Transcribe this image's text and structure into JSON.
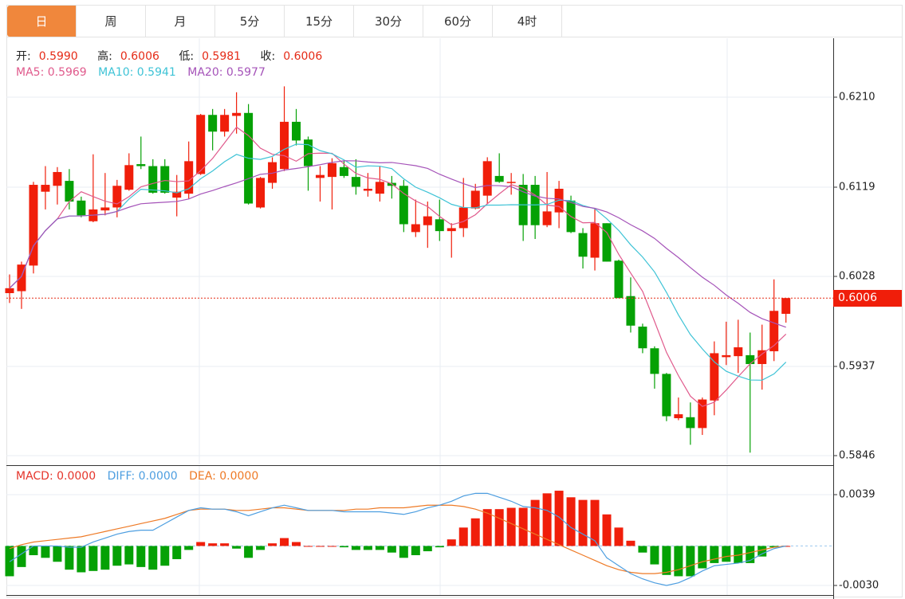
{
  "tabs": [
    {
      "label": "日",
      "active": true
    },
    {
      "label": "周",
      "active": false
    },
    {
      "label": "月",
      "active": false
    },
    {
      "label": "5分",
      "active": false
    },
    {
      "label": "15分",
      "active": false
    },
    {
      "label": "30分",
      "active": false
    },
    {
      "label": "60分",
      "active": false
    },
    {
      "label": "4时",
      "active": false
    }
  ],
  "ohlc_legend": {
    "open_label": "开:",
    "open": "0.5990",
    "high_label": "高:",
    "high": "0.6006",
    "low_label": "低:",
    "low": "0.5981",
    "close_label": "收:",
    "close": "0.6006"
  },
  "ma_legend": {
    "ma5": "MA5: 0.5969",
    "ma10": "MA10: 0.5941",
    "ma20": "MA20: 0.5977"
  },
  "macd_legend": {
    "macd": "MACD: 0.0000",
    "diff": "DIFF: 0.0000",
    "dea": "DEA: 0.0000"
  },
  "current_price": "0.6006",
  "colors": {
    "up": "#f01e0a",
    "down": "#05a105",
    "ma5": "#e05a8c",
    "ma10": "#3ec3d6",
    "ma20": "#a553b9",
    "diff": "#4d9ee0",
    "dea": "#ee7a26",
    "tab_active": "#f0873c"
  },
  "chart_data": [
    {
      "type": "candlestick",
      "y_ticks": [
        "0.6210",
        "0.6119",
        "0.6028",
        "0.5937",
        "0.5846"
      ],
      "ylim": [
        0.5846,
        0.621
      ],
      "grid": true,
      "ma_periods": [
        5,
        10,
        20
      ],
      "ohlc": [
        [
          0.6011,
          0.603,
          0.6001,
          0.6016
        ],
        [
          0.6013,
          0.6043,
          0.5995,
          0.604
        ],
        [
          0.6039,
          0.6124,
          0.6031,
          0.6121
        ],
        [
          0.6114,
          0.614,
          0.6096,
          0.6121
        ],
        [
          0.612,
          0.6139,
          0.6101,
          0.6134
        ],
        [
          0.6125,
          0.6137,
          0.6096,
          0.6104
        ],
        [
          0.6105,
          0.6109,
          0.6088,
          0.609
        ],
        [
          0.6084,
          0.6152,
          0.6083,
          0.6096
        ],
        [
          0.6095,
          0.6133,
          0.609,
          0.6098
        ],
        [
          0.6098,
          0.6126,
          0.6088,
          0.612
        ],
        [
          0.6116,
          0.6153,
          0.6115,
          0.6141
        ],
        [
          0.6142,
          0.617,
          0.6137,
          0.614
        ],
        [
          0.614,
          0.6147,
          0.6112,
          0.6113
        ],
        [
          0.614,
          0.6147,
          0.6112,
          0.6113
        ],
        [
          0.6108,
          0.6131,
          0.6089,
          0.6114
        ],
        [
          0.6112,
          0.6165,
          0.6107,
          0.6145
        ],
        [
          0.6132,
          0.6193,
          0.6131,
          0.6192
        ],
        [
          0.6192,
          0.6198,
          0.6156,
          0.6175
        ],
        [
          0.6175,
          0.6198,
          0.617,
          0.6192
        ],
        [
          0.6191,
          0.6215,
          0.6173,
          0.6194
        ],
        [
          0.6194,
          0.6203,
          0.6101,
          0.6102
        ],
        [
          0.6098,
          0.6129,
          0.6097,
          0.6128
        ],
        [
          0.6123,
          0.6149,
          0.6117,
          0.6144
        ],
        [
          0.6137,
          0.6221,
          0.6135,
          0.6185
        ],
        [
          0.6185,
          0.6198,
          0.6161,
          0.6166
        ],
        [
          0.6167,
          0.617,
          0.6115,
          0.614
        ],
        [
          0.6128,
          0.614,
          0.6104,
          0.6131
        ],
        [
          0.6129,
          0.6148,
          0.6096,
          0.6143
        ],
        [
          0.6139,
          0.6145,
          0.6128,
          0.613
        ],
        [
          0.6129,
          0.6147,
          0.6111,
          0.6119
        ],
        [
          0.6115,
          0.6133,
          0.6109,
          0.6117
        ],
        [
          0.6112,
          0.614,
          0.6104,
          0.6124
        ],
        [
          0.6123,
          0.613,
          0.6107,
          0.612
        ],
        [
          0.612,
          0.6126,
          0.6073,
          0.6081
        ],
        [
          0.6073,
          0.6106,
          0.6068,
          0.6081
        ],
        [
          0.608,
          0.6104,
          0.6057,
          0.6089
        ],
        [
          0.6086,
          0.6106,
          0.6064,
          0.6074
        ],
        [
          0.6074,
          0.6082,
          0.6047,
          0.6077
        ],
        [
          0.6077,
          0.6128,
          0.6068,
          0.6098
        ],
        [
          0.6097,
          0.6122,
          0.6096,
          0.6115
        ],
        [
          0.611,
          0.6149,
          0.6102,
          0.6145
        ],
        [
          0.613,
          0.6153,
          0.6123,
          0.6124
        ],
        [
          0.6123,
          0.6133,
          0.6111,
          0.6124
        ],
        [
          0.6121,
          0.6132,
          0.6064,
          0.608
        ],
        [
          0.6121,
          0.613,
          0.6066,
          0.608
        ],
        [
          0.608,
          0.6134,
          0.6078,
          0.6094
        ],
        [
          0.6093,
          0.6125,
          0.6077,
          0.6117
        ],
        [
          0.6105,
          0.611,
          0.6072,
          0.6073
        ],
        [
          0.6072,
          0.6077,
          0.6036,
          0.6048
        ],
        [
          0.6047,
          0.6097,
          0.6034,
          0.6082
        ],
        [
          0.6082,
          0.6082,
          0.6043,
          0.6043
        ],
        [
          0.6044,
          0.6045,
          0.6006,
          0.6006
        ],
        [
          0.6008,
          0.6027,
          0.5971,
          0.5978
        ],
        [
          0.5977,
          0.598,
          0.595,
          0.5955
        ],
        [
          0.5955,
          0.5957,
          0.5914,
          0.5929
        ],
        [
          0.5929,
          0.593,
          0.5881,
          0.5886
        ],
        [
          0.5884,
          0.5905,
          0.5882,
          0.5888
        ],
        [
          0.5885,
          0.59,
          0.5857,
          0.5874
        ],
        [
          0.5874,
          0.5905,
          0.5867,
          0.5903
        ],
        [
          0.5902,
          0.5962,
          0.5887,
          0.595
        ],
        [
          0.5946,
          0.5982,
          0.5938,
          0.5948
        ],
        [
          0.5947,
          0.5984,
          0.593,
          0.5956
        ],
        [
          0.5948,
          0.5971,
          0.5849,
          0.5939
        ],
        [
          0.5939,
          0.5979,
          0.5913,
          0.5953
        ],
        [
          0.5952,
          0.6025,
          0.5942,
          0.5993
        ],
        [
          0.599,
          0.6006,
          0.5981,
          0.6006
        ]
      ]
    },
    {
      "type": "bar+line",
      "y_ticks": [
        "0.0039",
        "-0.0030"
      ],
      "ylim": [
        -0.003,
        0.0039
      ],
      "macd": [
        -0.0023,
        -0.0016,
        -0.0007,
        -0.0009,
        -0.0012,
        -0.0018,
        -0.002,
        -0.0019,
        -0.0018,
        -0.0015,
        -0.0014,
        -0.0016,
        -0.0018,
        -0.0015,
        -0.001,
        -0.0003,
        0.0003,
        0.0002,
        0.0002,
        -0.0002,
        -0.0009,
        -0.0003,
        0.0002,
        0.0006,
        0.0003,
        0.0,
        0.0,
        0.0,
        -0.0001,
        -0.0003,
        -0.0003,
        -0.0003,
        -0.0005,
        -0.0009,
        -0.0007,
        -0.0004,
        -0.0001,
        0.0005,
        0.0014,
        0.0021,
        0.0028,
        0.0028,
        0.0029,
        0.0029,
        0.0035,
        0.004,
        0.0042,
        0.0037,
        0.0035,
        0.0035,
        0.0024,
        0.0014,
        0.0004,
        -0.0005,
        -0.0014,
        -0.0022,
        -0.0023,
        -0.0023,
        -0.0017,
        -0.0013,
        -0.0012,
        -0.0013,
        -0.0013,
        -0.0008,
        -0.0001,
        0.0
      ],
      "diff": [
        -0.0012,
        -0.0006,
        0.0,
        0.0,
        0.0,
        -0.0001,
        -0.0001,
        0.0003,
        0.0006,
        0.0009,
        0.0011,
        0.0012,
        0.0012,
        0.0017,
        0.0022,
        0.0027,
        0.0029,
        0.0028,
        0.0028,
        0.0026,
        0.0023,
        0.0026,
        0.0029,
        0.0031,
        0.0029,
        0.0027,
        0.0027,
        0.0027,
        0.0026,
        0.0026,
        0.0026,
        0.0026,
        0.0025,
        0.0024,
        0.0026,
        0.0029,
        0.0031,
        0.0034,
        0.0038,
        0.004,
        0.004,
        0.0037,
        0.0034,
        0.003,
        0.0029,
        0.0027,
        0.0022,
        0.0014,
        0.0009,
        0.0004,
        -0.0009,
        -0.0015,
        -0.0021,
        -0.0025,
        -0.0028,
        -0.003,
        -0.0028,
        -0.0024,
        -0.0019,
        -0.0015,
        -0.0014,
        -0.0013,
        -0.0011,
        -0.0006,
        -0.0002,
        0.0
      ],
      "dea": [
        -0.0002,
        0.0001,
        0.0003,
        0.0004,
        0.0005,
        0.0006,
        0.0007,
        0.0009,
        0.0011,
        0.0013,
        0.0015,
        0.0017,
        0.0019,
        0.0021,
        0.0024,
        0.0027,
        0.0028,
        0.0028,
        0.0028,
        0.0027,
        0.0027,
        0.0028,
        0.0029,
        0.0029,
        0.0028,
        0.0027,
        0.0027,
        0.0027,
        0.0027,
        0.0028,
        0.0028,
        0.0029,
        0.0029,
        0.0029,
        0.003,
        0.0031,
        0.0031,
        0.0031,
        0.003,
        0.0028,
        0.0025,
        0.0021,
        0.0017,
        0.0013,
        0.0009,
        0.0005,
        0.0001,
        -0.0003,
        -0.0007,
        -0.0011,
        -0.0015,
        -0.0018,
        -0.002,
        -0.0021,
        -0.0021,
        -0.002,
        -0.0018,
        -0.0015,
        -0.0012,
        -0.001,
        -0.0008,
        -0.0007,
        -0.0005,
        -0.0003,
        -0.0001,
        0.0
      ]
    }
  ]
}
